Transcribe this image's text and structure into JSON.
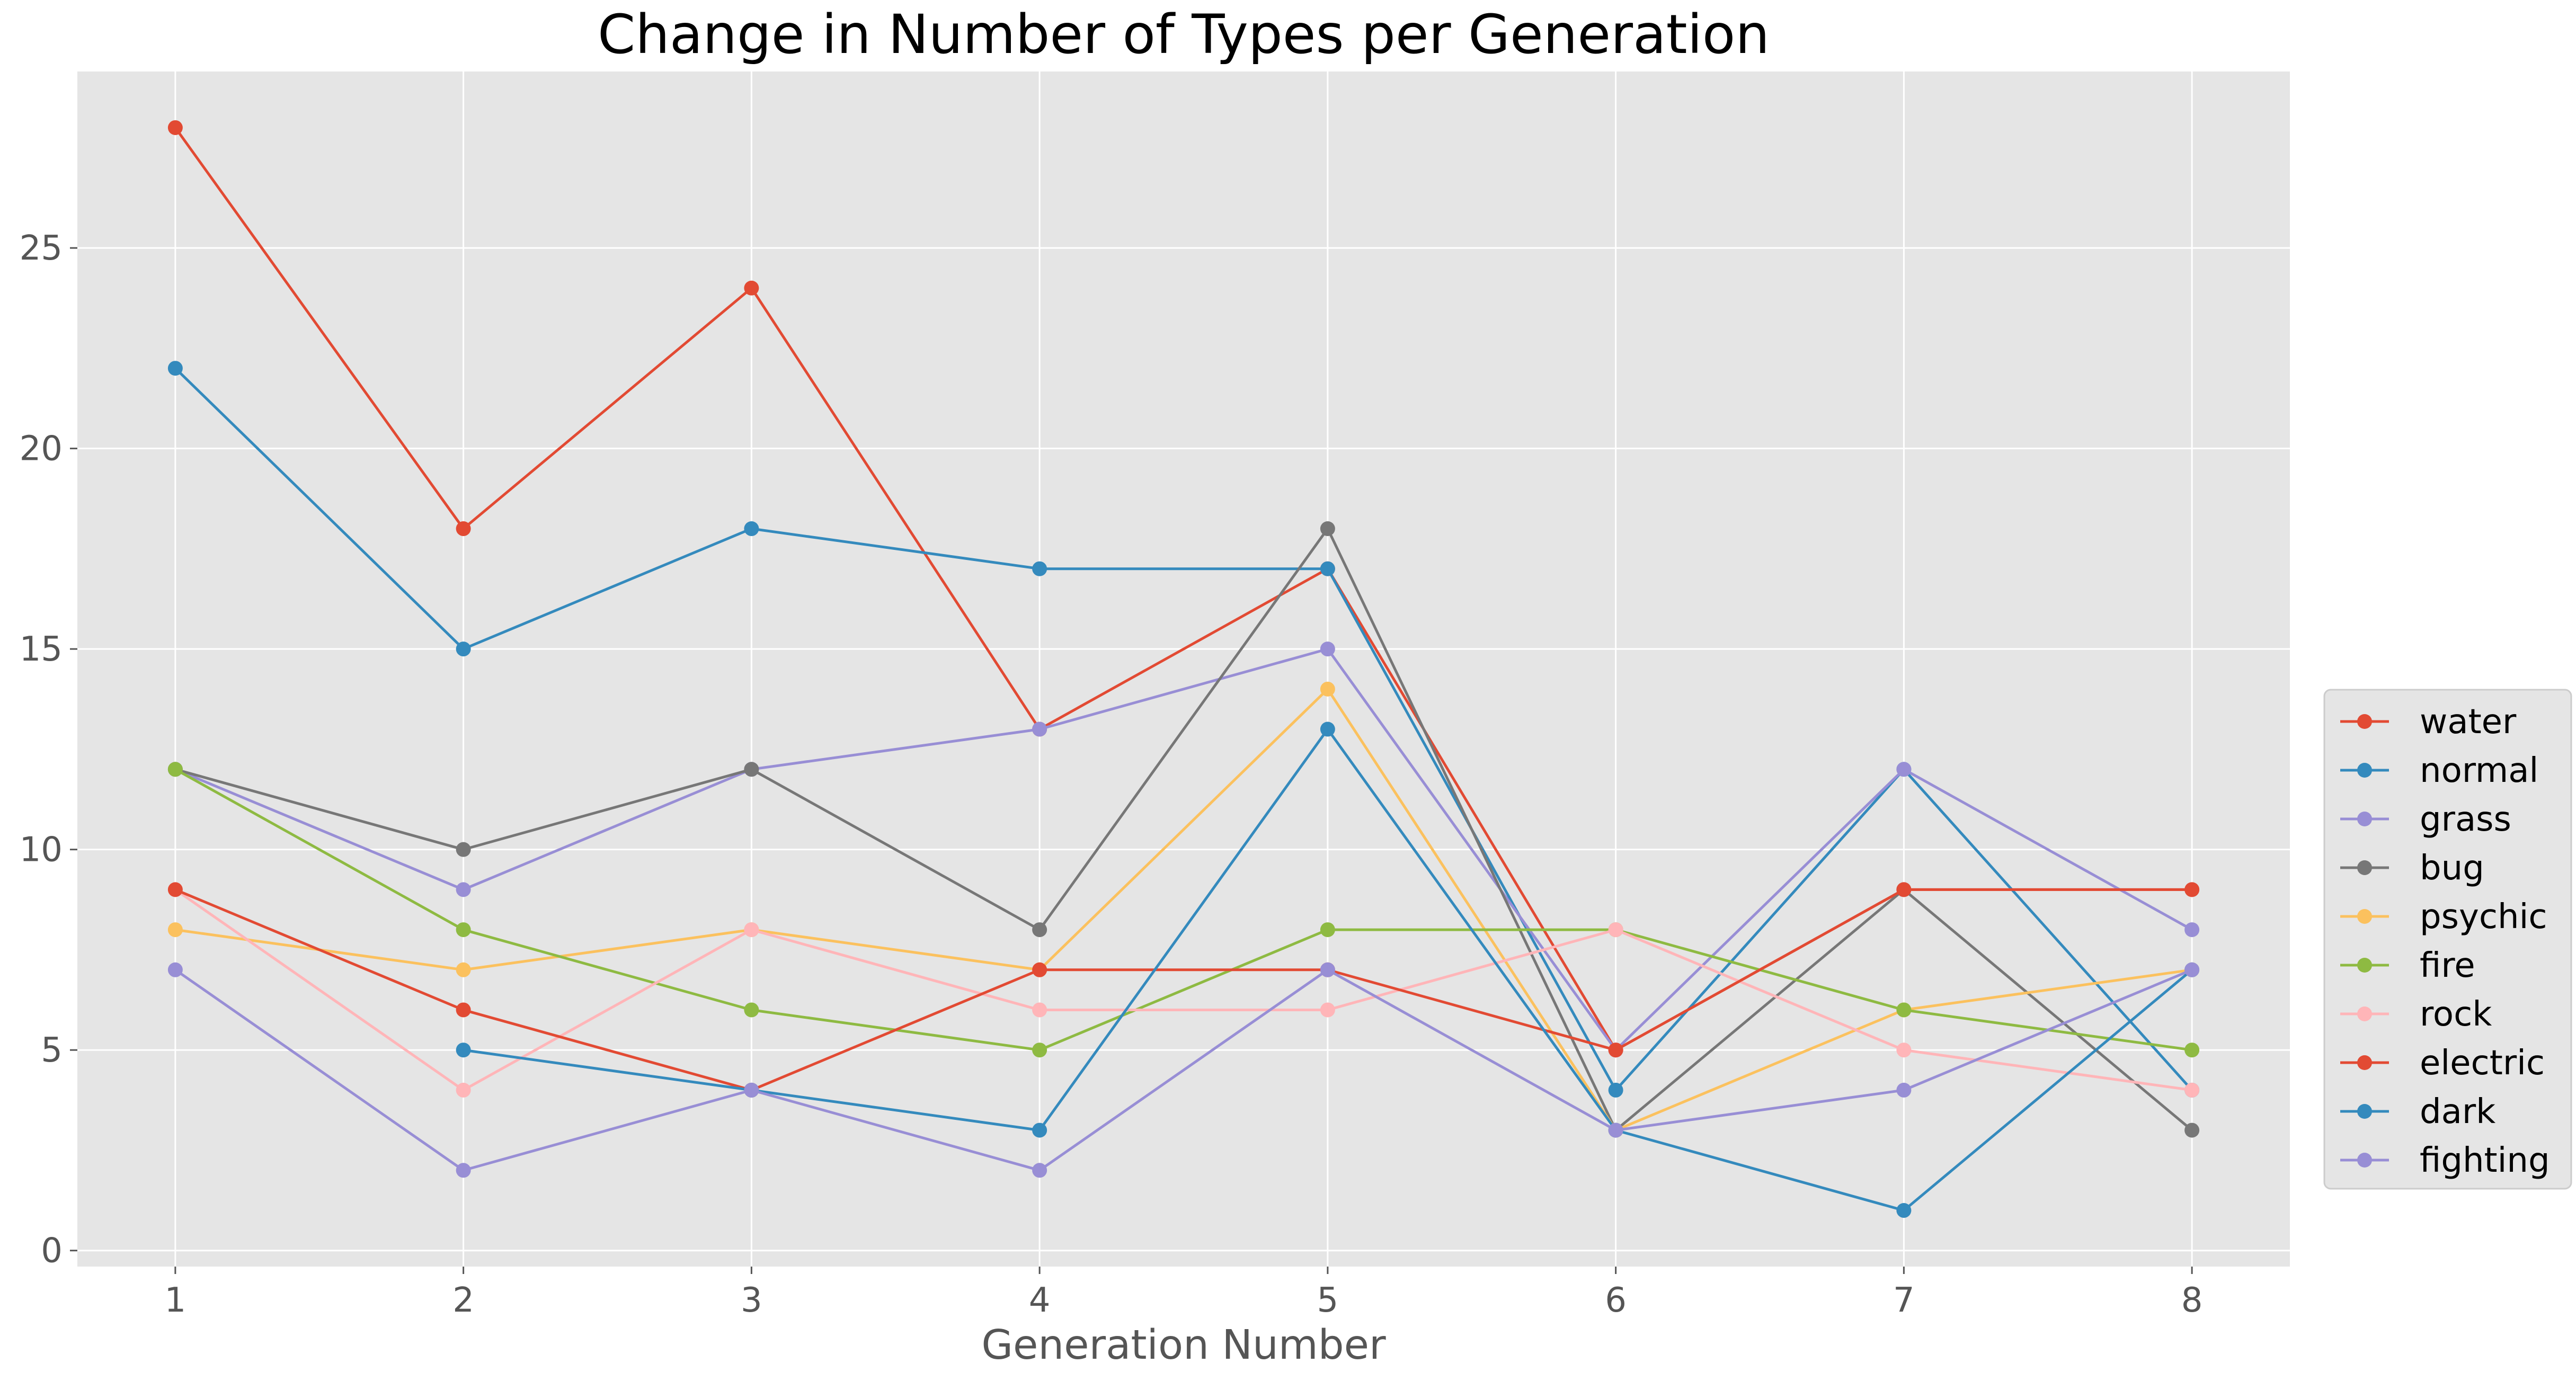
{
  "chart_data": {
    "type": "line",
    "title": "Change in Number of Types per Generation",
    "xlabel": "Generation Number",
    "ylabel": "",
    "x": [
      1,
      2,
      3,
      4,
      5,
      6,
      7,
      8
    ],
    "xlim": [
      0.66,
      8.34
    ],
    "ylim": [
      -0.4,
      29.4
    ],
    "yticks": [
      0,
      5,
      10,
      15,
      20,
      25
    ],
    "grid": true,
    "legend_position": "center-right outside",
    "background": "#e5e5e5",
    "series": [
      {
        "name": "water",
        "color": "#e24a33",
        "values": [
          28,
          18,
          24,
          13,
          17,
          5,
          9,
          9
        ]
      },
      {
        "name": "normal",
        "color": "#348abd",
        "values": [
          22,
          15,
          18,
          17,
          17,
          4,
          12,
          4
        ]
      },
      {
        "name": "grass",
        "color": "#988ed5",
        "values": [
          12,
          9,
          12,
          13,
          15,
          5,
          12,
          8
        ]
      },
      {
        "name": "bug",
        "color": "#777777",
        "values": [
          12,
          10,
          12,
          8,
          18,
          3,
          9,
          3
        ]
      },
      {
        "name": "psychic",
        "color": "#fbc15e",
        "values": [
          8,
          7,
          8,
          7,
          14,
          3,
          6,
          7
        ]
      },
      {
        "name": "fire",
        "color": "#8eba42",
        "values": [
          12,
          8,
          6,
          5,
          8,
          8,
          6,
          5
        ]
      },
      {
        "name": "rock",
        "color": "#ffb5b8",
        "values": [
          9,
          4,
          8,
          6,
          6,
          8,
          5,
          4
        ]
      },
      {
        "name": "electric",
        "color": "#e24a33",
        "values": [
          9,
          6,
          4,
          7,
          7,
          5,
          9,
          9
        ]
      },
      {
        "name": "dark",
        "color": "#348abd",
        "values": [
          null,
          5,
          4,
          3,
          13,
          3,
          1,
          7
        ]
      },
      {
        "name": "fighting",
        "color": "#988ed5",
        "values": [
          7,
          2,
          4,
          2,
          7,
          3,
          4,
          7
        ]
      }
    ]
  }
}
